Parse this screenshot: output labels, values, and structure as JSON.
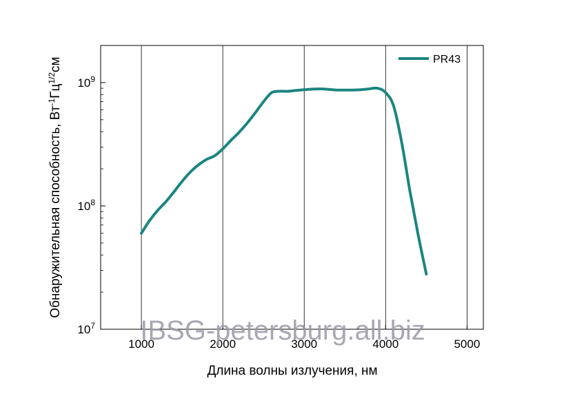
{
  "chart_data": {
    "type": "line",
    "title": "",
    "xlabel": "Длина волны излучения, нм",
    "ylabel_parts": {
      "main": "Обнаружительная способность, Вт",
      "sup1": "-1",
      "mid": "Гц",
      "sup2": "1/2",
      "end": "см"
    },
    "xlim": [
      500,
      5200
    ],
    "ylim": [
      10000000,
      2000000000
    ],
    "yscale": "log",
    "xticks": [
      1000,
      2000,
      3000,
      4000,
      5000
    ],
    "xtick_labels": [
      "1000",
      "2000",
      "3000",
      "4000",
      "5000"
    ],
    "yticks": [
      {
        "value": 10000000,
        "base": "10",
        "exp": "7"
      },
      {
        "value": 100000000,
        "base": "10",
        "exp": "8"
      },
      {
        "value": 1000000000,
        "base": "10",
        "exp": "9"
      }
    ],
    "grid": "x-major",
    "legend_position": "top-right",
    "series": [
      {
        "name": "PR43",
        "color": "#1a8580",
        "x": [
          1000,
          1100,
          1200,
          1300,
          1400,
          1500,
          1600,
          1700,
          1800,
          1900,
          2000,
          2100,
          2200,
          2300,
          2400,
          2500,
          2600,
          2700,
          2800,
          2900,
          3000,
          3100,
          3200,
          3300,
          3400,
          3500,
          3600,
          3700,
          3800,
          3900,
          4000,
          4100,
          4200,
          4300,
          4400,
          4500
        ],
        "y": [
          60000000,
          76000000,
          92000000,
          108000000,
          130000000,
          158000000,
          188000000,
          215000000,
          238000000,
          255000000,
          290000000,
          340000000,
          395000000,
          470000000,
          570000000,
          700000000,
          830000000,
          850000000,
          850000000,
          865000000,
          875000000,
          885000000,
          890000000,
          880000000,
          870000000,
          870000000,
          870000000,
          875000000,
          890000000,
          900000000,
          830000000,
          640000000,
          320000000,
          130000000,
          58000000,
          28000000
        ]
      }
    ]
  },
  "watermark": "IBSG-petersburg.all.biz"
}
